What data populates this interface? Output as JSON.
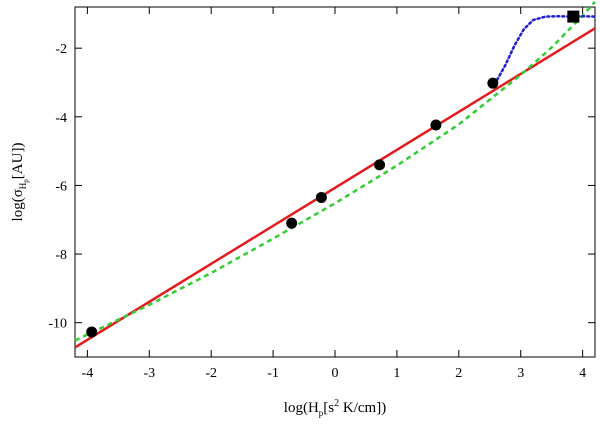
{
  "chart_data": {
    "type": "scatter",
    "xlabel": {
      "prefix": "log(H",
      "sub": "p",
      "mid": "[s",
      "sup": "2",
      "suffix": " K/cm])"
    },
    "ylabel": {
      "prefix": "log(σ",
      "sub": "H",
      "subsub": "p",
      "suffix": "[AU])"
    },
    "xlim": [
      -4.2,
      4.2
    ],
    "ylim": [
      -11,
      -0.8
    ],
    "x_ticks": [
      -4,
      -3,
      -2,
      -1,
      0,
      1,
      2,
      3,
      4
    ],
    "x_tick_labels": [
      "-4",
      "-3",
      "-2",
      "-1",
      "0",
      "1",
      "2",
      "3",
      "4"
    ],
    "y_ticks": [
      -10,
      -8,
      -6,
      -4,
      -2
    ],
    "y_tick_labels": [
      "-10",
      "-8",
      "-6",
      "-4",
      "-2"
    ],
    "series": [
      {
        "marker": "circle",
        "color": "#000000",
        "x": [
          -3.93,
          -0.7,
          -0.22,
          0.72,
          1.63,
          2.55
        ],
        "y": [
          -10.27,
          -7.1,
          -6.35,
          -5.4,
          -4.24,
          -3.02
        ]
      },
      {
        "marker": "square",
        "color": "#000000",
        "x": [
          3.85
        ],
        "y": [
          -1.08
        ]
      },
      {
        "style": "solid-line",
        "color": "#e41a1c",
        "x": [
          -4.2,
          4.2
        ],
        "y": [
          -10.72,
          -1.42
        ]
      },
      {
        "style": "dashed-line",
        "color": "#33cc33",
        "x": [
          -4.2,
          -3.0,
          -2.0,
          -1.0,
          0.0,
          1.0,
          2.0,
          3.0,
          3.5,
          4.0,
          4.2
        ],
        "y": [
          -10.52,
          -9.48,
          -8.55,
          -7.55,
          -6.52,
          -5.42,
          -4.22,
          -2.78,
          -1.98,
          -1.05,
          -0.65
        ]
      },
      {
        "style": "dotted-line",
        "color": "#1f1fd6",
        "x": [
          2.58,
          2.75,
          2.9,
          3.05,
          3.2,
          3.4,
          3.6,
          3.85,
          4.0,
          4.2
        ],
        "y": [
          -3.05,
          -2.5,
          -1.92,
          -1.45,
          -1.18,
          -1.08,
          -1.07,
          -1.08,
          -1.07,
          -1.08
        ]
      }
    ]
  }
}
